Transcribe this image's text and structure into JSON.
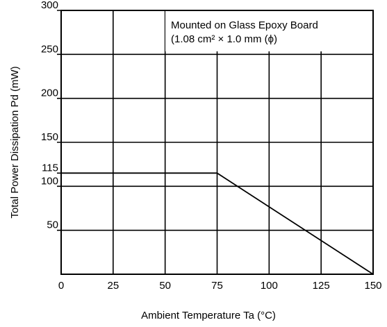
{
  "chart_data": {
    "type": "line",
    "x_label": "Ambient Temperature  Ta (°C)",
    "y_label": "Total Power Dissipation  Pd (mW)",
    "annotation": [
      "Mounted on Glass Epoxy Board",
      "(1.08 cm² × 1.0 mm (ϕ)"
    ],
    "x": [
      0,
      75,
      150
    ],
    "series": [
      {
        "color": "#000000",
        "values": [
          115,
          115,
          0
        ]
      }
    ],
    "xlim": [
      0,
      150
    ],
    "xticks": [
      0,
      25,
      50,
      75,
      100,
      125,
      150
    ],
    "ylim": [
      0,
      300
    ],
    "yticks": [
      50,
      100,
      150,
      200,
      250,
      300
    ],
    "yticks_minor": [
      115
    ],
    "grid": true
  }
}
